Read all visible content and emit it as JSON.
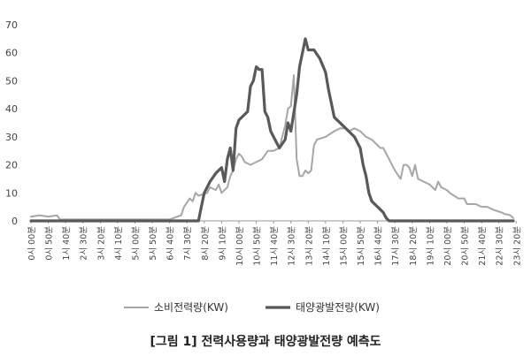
{
  "caption": "[그림 1] 전력사용량과 태양광발전량 예측도",
  "chart_data": {
    "type": "line",
    "ylim": [
      0,
      70
    ],
    "yticks": [
      0,
      10,
      20,
      30,
      40,
      50,
      60,
      70
    ],
    "x_tick_labels": [
      "0시 00분",
      "0시 50분",
      "1시 40분",
      "2시 30분",
      "3시 20분",
      "4시 10분",
      "5시 00분",
      "5시 50분",
      "6시 40분",
      "7시 30분",
      "8시 20분",
      "9시 10분",
      "10시 00분",
      "10시 50분",
      "11시 40분",
      "12시 30분",
      "13시 20분",
      "14시 10분",
      "15시 00분",
      "15시 50분",
      "16시 40분",
      "17시 30분",
      "18시 20분",
      "19시 10분",
      "20시 00분",
      "20시 50분",
      "21시 40분",
      "22시 30분",
      "23시 20분"
    ],
    "x_unit_minutes": 10,
    "series": [
      {
        "name": "소비전력량(KW)",
        "color": "#a6a6a6",
        "points": [
          [
            0,
            1.5
          ],
          [
            3,
            2
          ],
          [
            6,
            1.5
          ],
          [
            9,
            2
          ],
          [
            10,
            0.5
          ],
          [
            30,
            0.5
          ],
          [
            40,
            0.5
          ],
          [
            48,
            0.5
          ],
          [
            52,
            2
          ],
          [
            53,
            5
          ],
          [
            55,
            8
          ],
          [
            56,
            7
          ],
          [
            57,
            10
          ],
          [
            58,
            9
          ],
          [
            61,
            10
          ],
          [
            62,
            12
          ],
          [
            64,
            11
          ],
          [
            65,
            13
          ],
          [
            66,
            10
          ],
          [
            68,
            12
          ],
          [
            69,
            16
          ],
          [
            70,
            18
          ],
          [
            71,
            22
          ],
          [
            72,
            24
          ],
          [
            73,
            23
          ],
          [
            74,
            21
          ],
          [
            76,
            20
          ],
          [
            78,
            21
          ],
          [
            80,
            22
          ],
          [
            82,
            25
          ],
          [
            84,
            25
          ],
          [
            86,
            26
          ],
          [
            87,
            30
          ],
          [
            88,
            34
          ],
          [
            89,
            40
          ],
          [
            90,
            41
          ],
          [
            91,
            52
          ],
          [
            92,
            22
          ],
          [
            93,
            16
          ],
          [
            94,
            16
          ],
          [
            95,
            18
          ],
          [
            96,
            17
          ],
          [
            97,
            18
          ],
          [
            98,
            27
          ],
          [
            99,
            29
          ],
          [
            102,
            30
          ],
          [
            105,
            32
          ],
          [
            107,
            33
          ],
          [
            109,
            33
          ],
          [
            110,
            32
          ],
          [
            112,
            33
          ],
          [
            114,
            32
          ],
          [
            116,
            30
          ],
          [
            118,
            29
          ],
          [
            120,
            27
          ],
          [
            121,
            26
          ],
          [
            122,
            26
          ],
          [
            124,
            22
          ],
          [
            126,
            18
          ],
          [
            128,
            15
          ],
          [
            129,
            20
          ],
          [
            130,
            20
          ],
          [
            131,
            19
          ],
          [
            132,
            16
          ],
          [
            133,
            20
          ],
          [
            134,
            15
          ],
          [
            136,
            14
          ],
          [
            138,
            13
          ],
          [
            139,
            12
          ],
          [
            140,
            11
          ],
          [
            141,
            14
          ],
          [
            142,
            12
          ],
          [
            144,
            11
          ],
          [
            145,
            10
          ],
          [
            148,
            8
          ],
          [
            150,
            8
          ],
          [
            151,
            6
          ],
          [
            154,
            6
          ],
          [
            156,
            5
          ],
          [
            158,
            5
          ],
          [
            160,
            4
          ],
          [
            163,
            3
          ],
          [
            164,
            2.5
          ],
          [
            166,
            2
          ],
          [
            167,
            1
          ]
        ]
      },
      {
        "name": "태양광발전량(KW)",
        "color": "#595959",
        "points": [
          [
            0,
            0
          ],
          [
            57,
            0
          ],
          [
            58,
            0
          ],
          [
            59,
            5
          ],
          [
            60,
            10
          ],
          [
            62,
            14
          ],
          [
            64,
            17
          ],
          [
            65,
            18
          ],
          [
            66,
            19
          ],
          [
            67,
            14
          ],
          [
            68,
            22
          ],
          [
            69,
            26
          ],
          [
            70,
            18
          ],
          [
            71,
            33
          ],
          [
            72,
            36
          ],
          [
            74,
            38
          ],
          [
            75,
            39
          ],
          [
            76,
            48
          ],
          [
            77,
            50
          ],
          [
            78,
            55
          ],
          [
            79,
            54
          ],
          [
            80,
            54
          ],
          [
            81,
            39
          ],
          [
            82,
            37
          ],
          [
            83,
            32
          ],
          [
            84,
            30
          ],
          [
            86,
            26
          ],
          [
            88,
            29
          ],
          [
            89,
            35
          ],
          [
            90,
            32
          ],
          [
            92,
            45
          ],
          [
            93,
            55
          ],
          [
            94,
            60
          ],
          [
            95,
            65
          ],
          [
            96,
            61
          ],
          [
            98,
            61
          ],
          [
            100,
            58
          ],
          [
            102,
            53
          ],
          [
            103,
            47
          ],
          [
            104,
            42
          ],
          [
            105,
            37
          ],
          [
            106,
            36
          ],
          [
            108,
            34
          ],
          [
            110,
            32
          ],
          [
            112,
            30
          ],
          [
            114,
            26
          ],
          [
            115,
            20
          ],
          [
            116,
            16
          ],
          [
            117,
            10
          ],
          [
            118,
            7
          ],
          [
            120,
            5
          ],
          [
            121,
            4
          ],
          [
            122,
            3
          ],
          [
            123,
            1
          ],
          [
            124,
            0
          ],
          [
            167,
            0
          ]
        ]
      }
    ]
  }
}
